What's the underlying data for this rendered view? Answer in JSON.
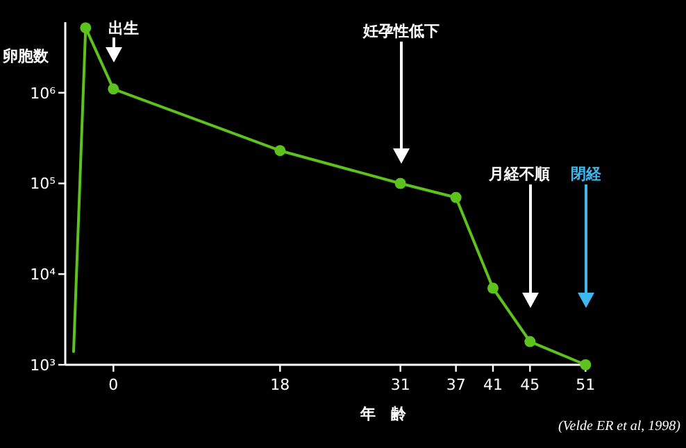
{
  "chart_data": {
    "type": "line",
    "log": "y",
    "xlabel": "年　齢",
    "ylabel": "卵胞数",
    "xlim": [
      -5.2,
      51.5
    ],
    "ylim": [
      1000,
      6000000
    ],
    "xticks": [
      0,
      18,
      31,
      37,
      41,
      45,
      51
    ],
    "yticks": [
      {
        "value": 1000,
        "label": "10³"
      },
      {
        "value": 10000,
        "label": "10⁴"
      },
      {
        "value": 100000,
        "label": "10⁵"
      },
      {
        "value": 1000000,
        "label": "10⁶"
      }
    ],
    "series": [
      {
        "color": "#5dc21e",
        "x": [
          -4.3,
          -3
        ],
        "values": [
          1400,
          5200000
        ]
      },
      {
        "marker": "circle",
        "color": "#5dc21e",
        "x": [
          -3,
          0,
          18,
          31,
          37,
          41,
          45,
          51
        ],
        "values": [
          5200000,
          1100000,
          230000,
          100000,
          70000,
          7000,
          1800,
          1000
        ]
      }
    ],
    "annotations": [
      "出生",
      "妊孕性低下",
      "月経不順",
      "閉経",
      "(Velde ER et al, 1998)"
    ]
  }
}
